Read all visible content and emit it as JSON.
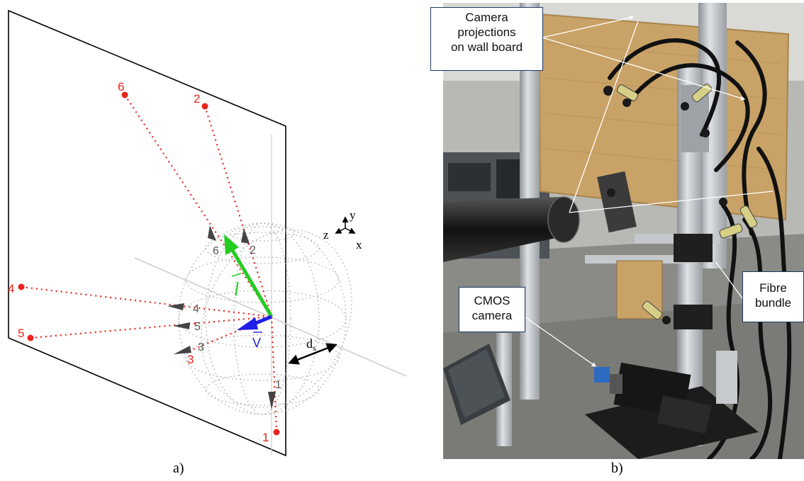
{
  "panel_a": {
    "caption": "a)",
    "wall_points": [
      {
        "label": "6"
      },
      {
        "label": "2"
      },
      {
        "label": "4"
      },
      {
        "label": "5"
      },
      {
        "label": "3"
      },
      {
        "label": "1"
      }
    ],
    "sphere_markers": [
      "6",
      "2",
      "4",
      "5",
      "3",
      "1"
    ],
    "vector_l_label": "l",
    "vector_v_label": "V",
    "distance_label": "d",
    "distance_subscript": "s",
    "axes": {
      "x": "x",
      "y": "y",
      "z": "z"
    },
    "colors": {
      "rays": "#e8241c",
      "l_vector": "#22cc22",
      "v_vector": "#1f1fe6",
      "sphere": "#9a9a9a",
      "wall": "#000000"
    }
  },
  "panel_b": {
    "caption": "b)",
    "callouts": {
      "projections": [
        "Camera",
        "projections",
        "on wall board"
      ],
      "cmos": [
        "CMOS",
        "camera"
      ],
      "fibre": [
        "Fibre",
        "bundle"
      ]
    },
    "colors": {
      "osb_board": "#c9a267",
      "frame": "#b8bcc0",
      "floor": "#8a8a86",
      "callout_border": "#1f3864"
    }
  }
}
